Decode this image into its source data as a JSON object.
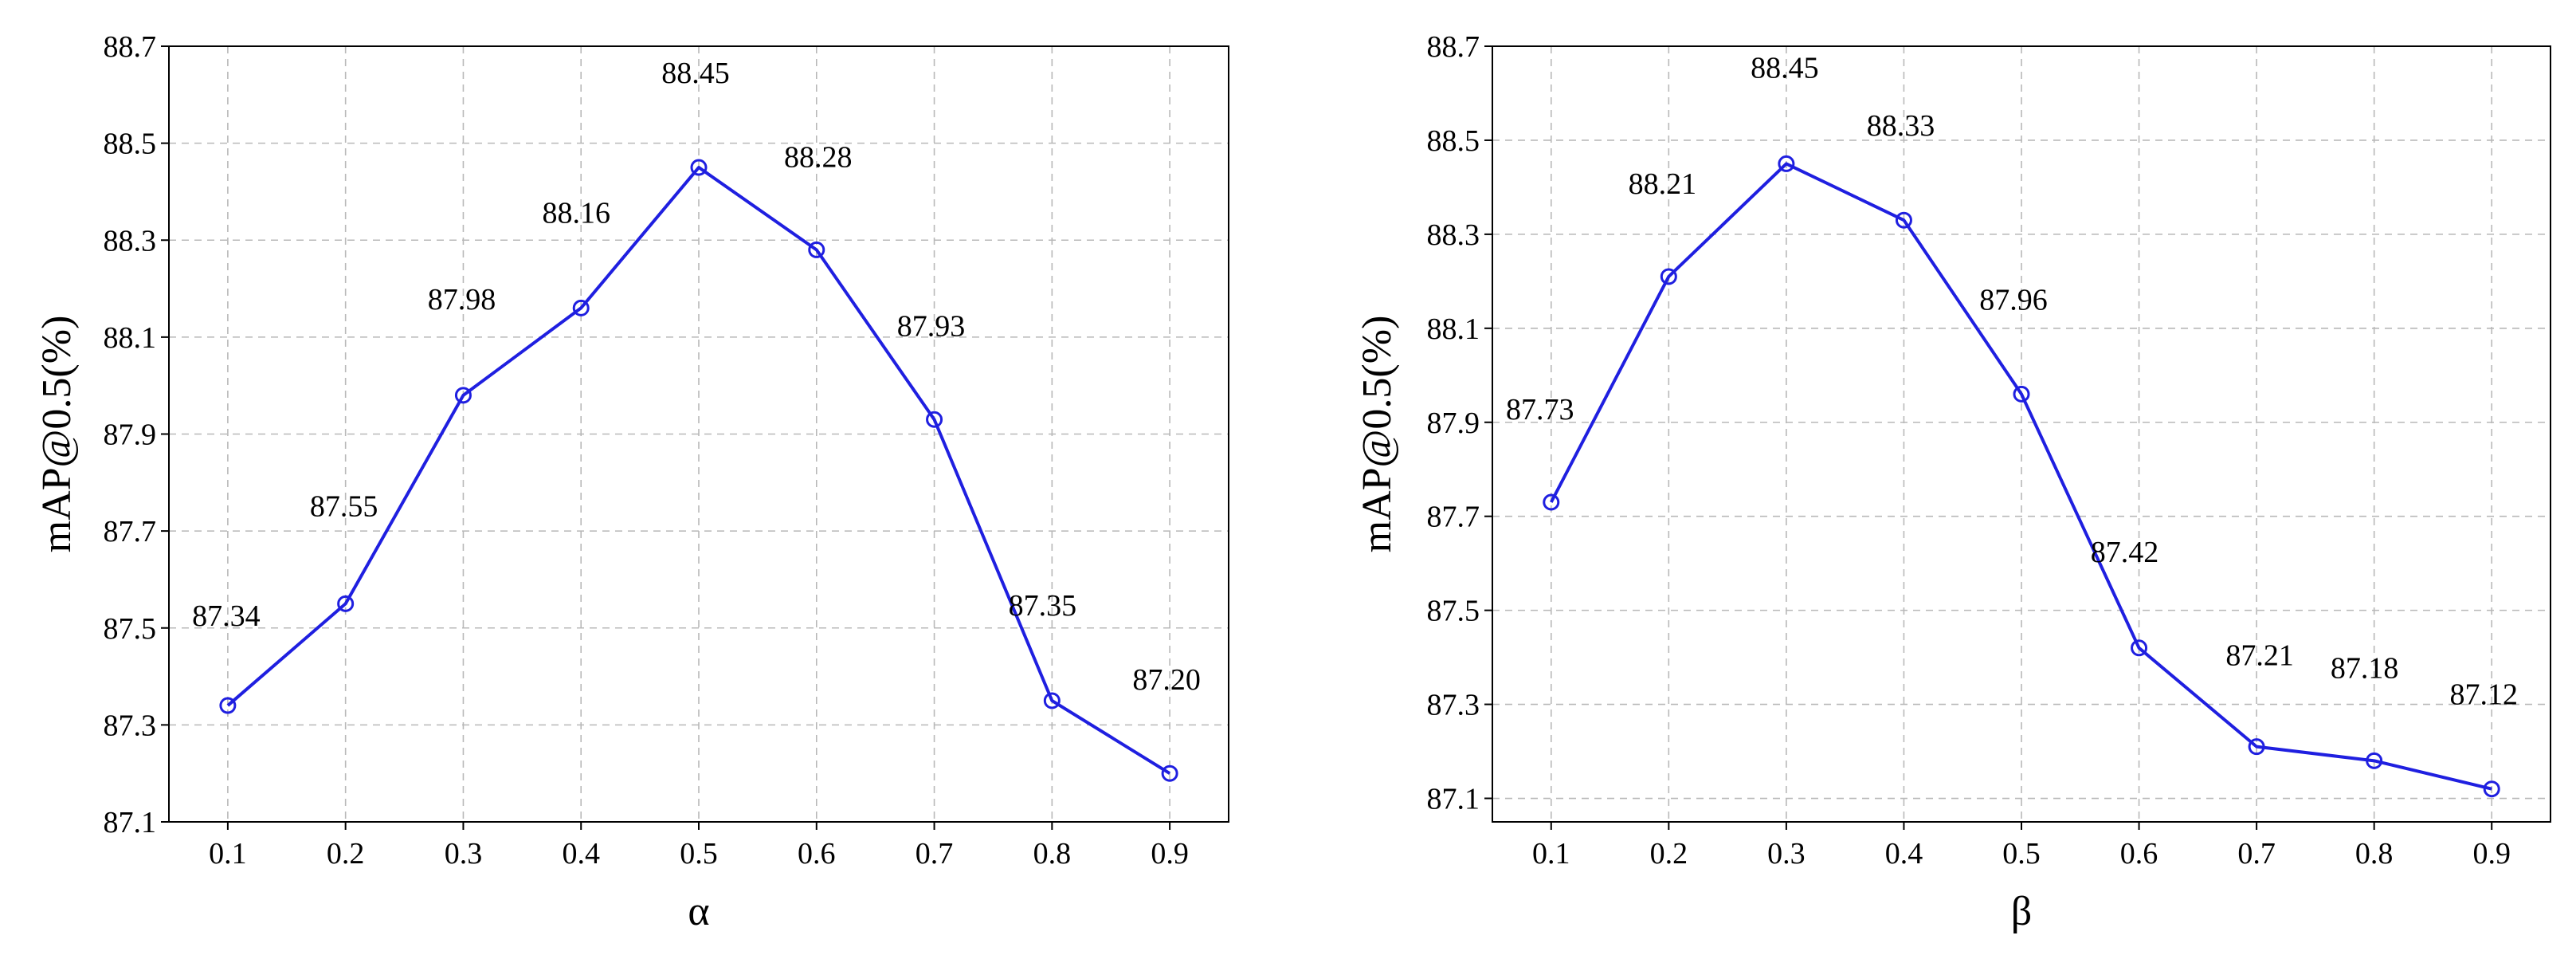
{
  "chart_data": [
    {
      "type": "line",
      "xlabel": "α",
      "ylabel": "mAP@0.5(%)",
      "x": [
        0.1,
        0.2,
        0.3,
        0.4,
        0.5,
        0.6,
        0.7,
        0.8,
        0.9
      ],
      "x_tick_labels": [
        "0.1",
        "0.2",
        "0.3",
        "0.4",
        "0.5",
        "0.6",
        "0.7",
        "0.8",
        "0.9"
      ],
      "y_ticks": [
        87.1,
        87.3,
        87.5,
        87.7,
        87.9,
        88.1,
        88.3,
        88.5,
        88.7
      ],
      "y_tick_labels": [
        "87.1",
        "87.3",
        "87.5",
        "87.7",
        "87.9",
        "88.1",
        "88.3",
        "88.5",
        "88.7"
      ],
      "ylim": [
        87.1,
        88.7
      ],
      "xlim": [
        0.05,
        0.95
      ],
      "grid": true,
      "color": "#1f1fe0",
      "marker": "open-circle",
      "series": [
        {
          "values": [
            87.34,
            87.55,
            87.98,
            88.16,
            88.45,
            88.28,
            87.93,
            87.35,
            87.2
          ],
          "data_labels": [
            "87.34",
            "87.55",
            "87.98",
            "88.16",
            "88.45",
            "88.28",
            "87.93",
            "87.35",
            "87.20"
          ]
        }
      ]
    },
    {
      "type": "line",
      "xlabel": "β",
      "ylabel": "mAP@0.5(%)",
      "x": [
        0.1,
        0.2,
        0.3,
        0.4,
        0.5,
        0.6,
        0.7,
        0.8,
        0.9
      ],
      "x_tick_labels": [
        "0.1",
        "0.2",
        "0.3",
        "0.4",
        "0.5",
        "0.6",
        "0.7",
        "0.8",
        "0.9"
      ],
      "y_ticks": [
        87.1,
        87.3,
        87.5,
        87.7,
        87.9,
        88.1,
        88.3,
        88.5,
        88.7
      ],
      "y_tick_labels": [
        "87.1",
        "87.3",
        "87.5",
        "87.7",
        "87.9",
        "88.1",
        "88.3",
        "88.5",
        "88.7"
      ],
      "ylim": [
        87.05,
        88.7
      ],
      "xlim": [
        0.05,
        0.95
      ],
      "grid": true,
      "color": "#1f1fe0",
      "marker": "open-circle",
      "series": [
        {
          "values": [
            87.73,
            88.21,
            88.45,
            88.33,
            87.96,
            87.42,
            87.21,
            87.18,
            87.12
          ],
          "data_labels": [
            "87.73",
            "88.21",
            "88.45",
            "88.33",
            "87.96",
            "87.42",
            "87.21",
            "87.18",
            "87.12"
          ]
        }
      ]
    }
  ]
}
